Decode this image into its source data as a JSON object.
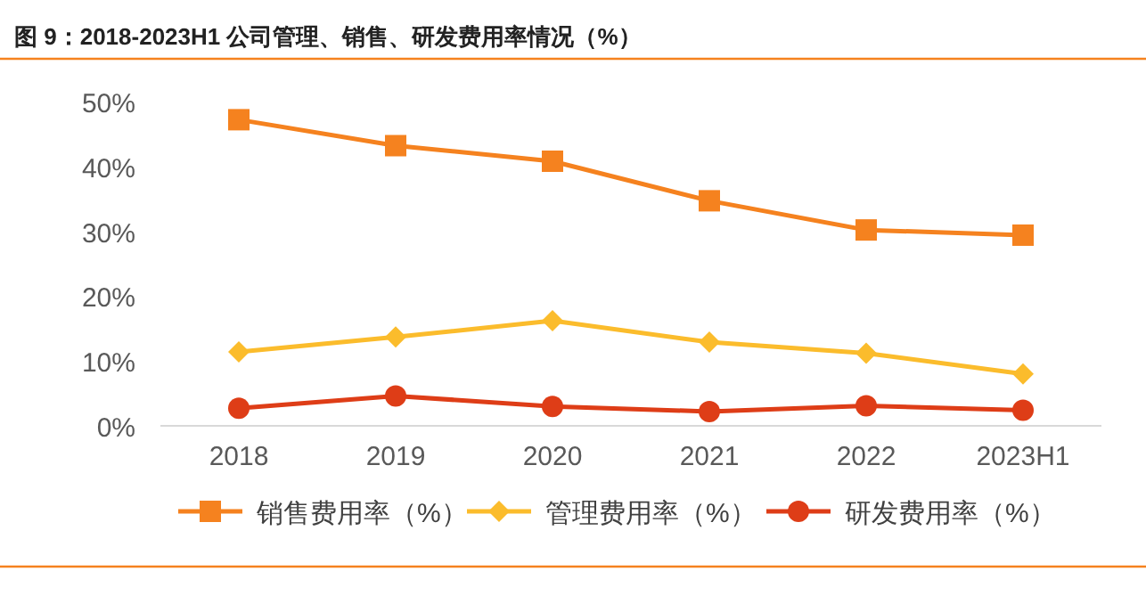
{
  "chart_data": {
    "type": "line",
    "title": "图 9：2018-2023H1 公司管理、销售、研发费用率情况（%）",
    "categories": [
      "2018",
      "2019",
      "2020",
      "2021",
      "2022",
      "2023H1"
    ],
    "series": [
      {
        "name": "销售费用率（%）",
        "color": "#f5821f",
        "marker": "square",
        "values": [
          47.2,
          43.2,
          40.8,
          34.7,
          30.2,
          29.4
        ]
      },
      {
        "name": "管理费用率（%）",
        "color": "#fbbc2c",
        "marker": "diamond",
        "values": [
          11.4,
          13.7,
          16.2,
          12.9,
          11.2,
          8.0
        ]
      },
      {
        "name": "研发费用率（%）",
        "color": "#de3d17",
        "marker": "circle",
        "values": [
          2.7,
          4.6,
          3.0,
          2.2,
          3.1,
          2.4
        ]
      }
    ],
    "ylim": [
      0,
      50
    ],
    "yticks": [
      {
        "value": 0,
        "label": "0%"
      },
      {
        "value": 10,
        "label": "10%"
      },
      {
        "value": 20,
        "label": "20%"
      },
      {
        "value": 30,
        "label": "30%"
      },
      {
        "value": 40,
        "label": "40%"
      },
      {
        "value": 50,
        "label": "50%"
      }
    ],
    "grid": false,
    "legend": "bottom"
  }
}
